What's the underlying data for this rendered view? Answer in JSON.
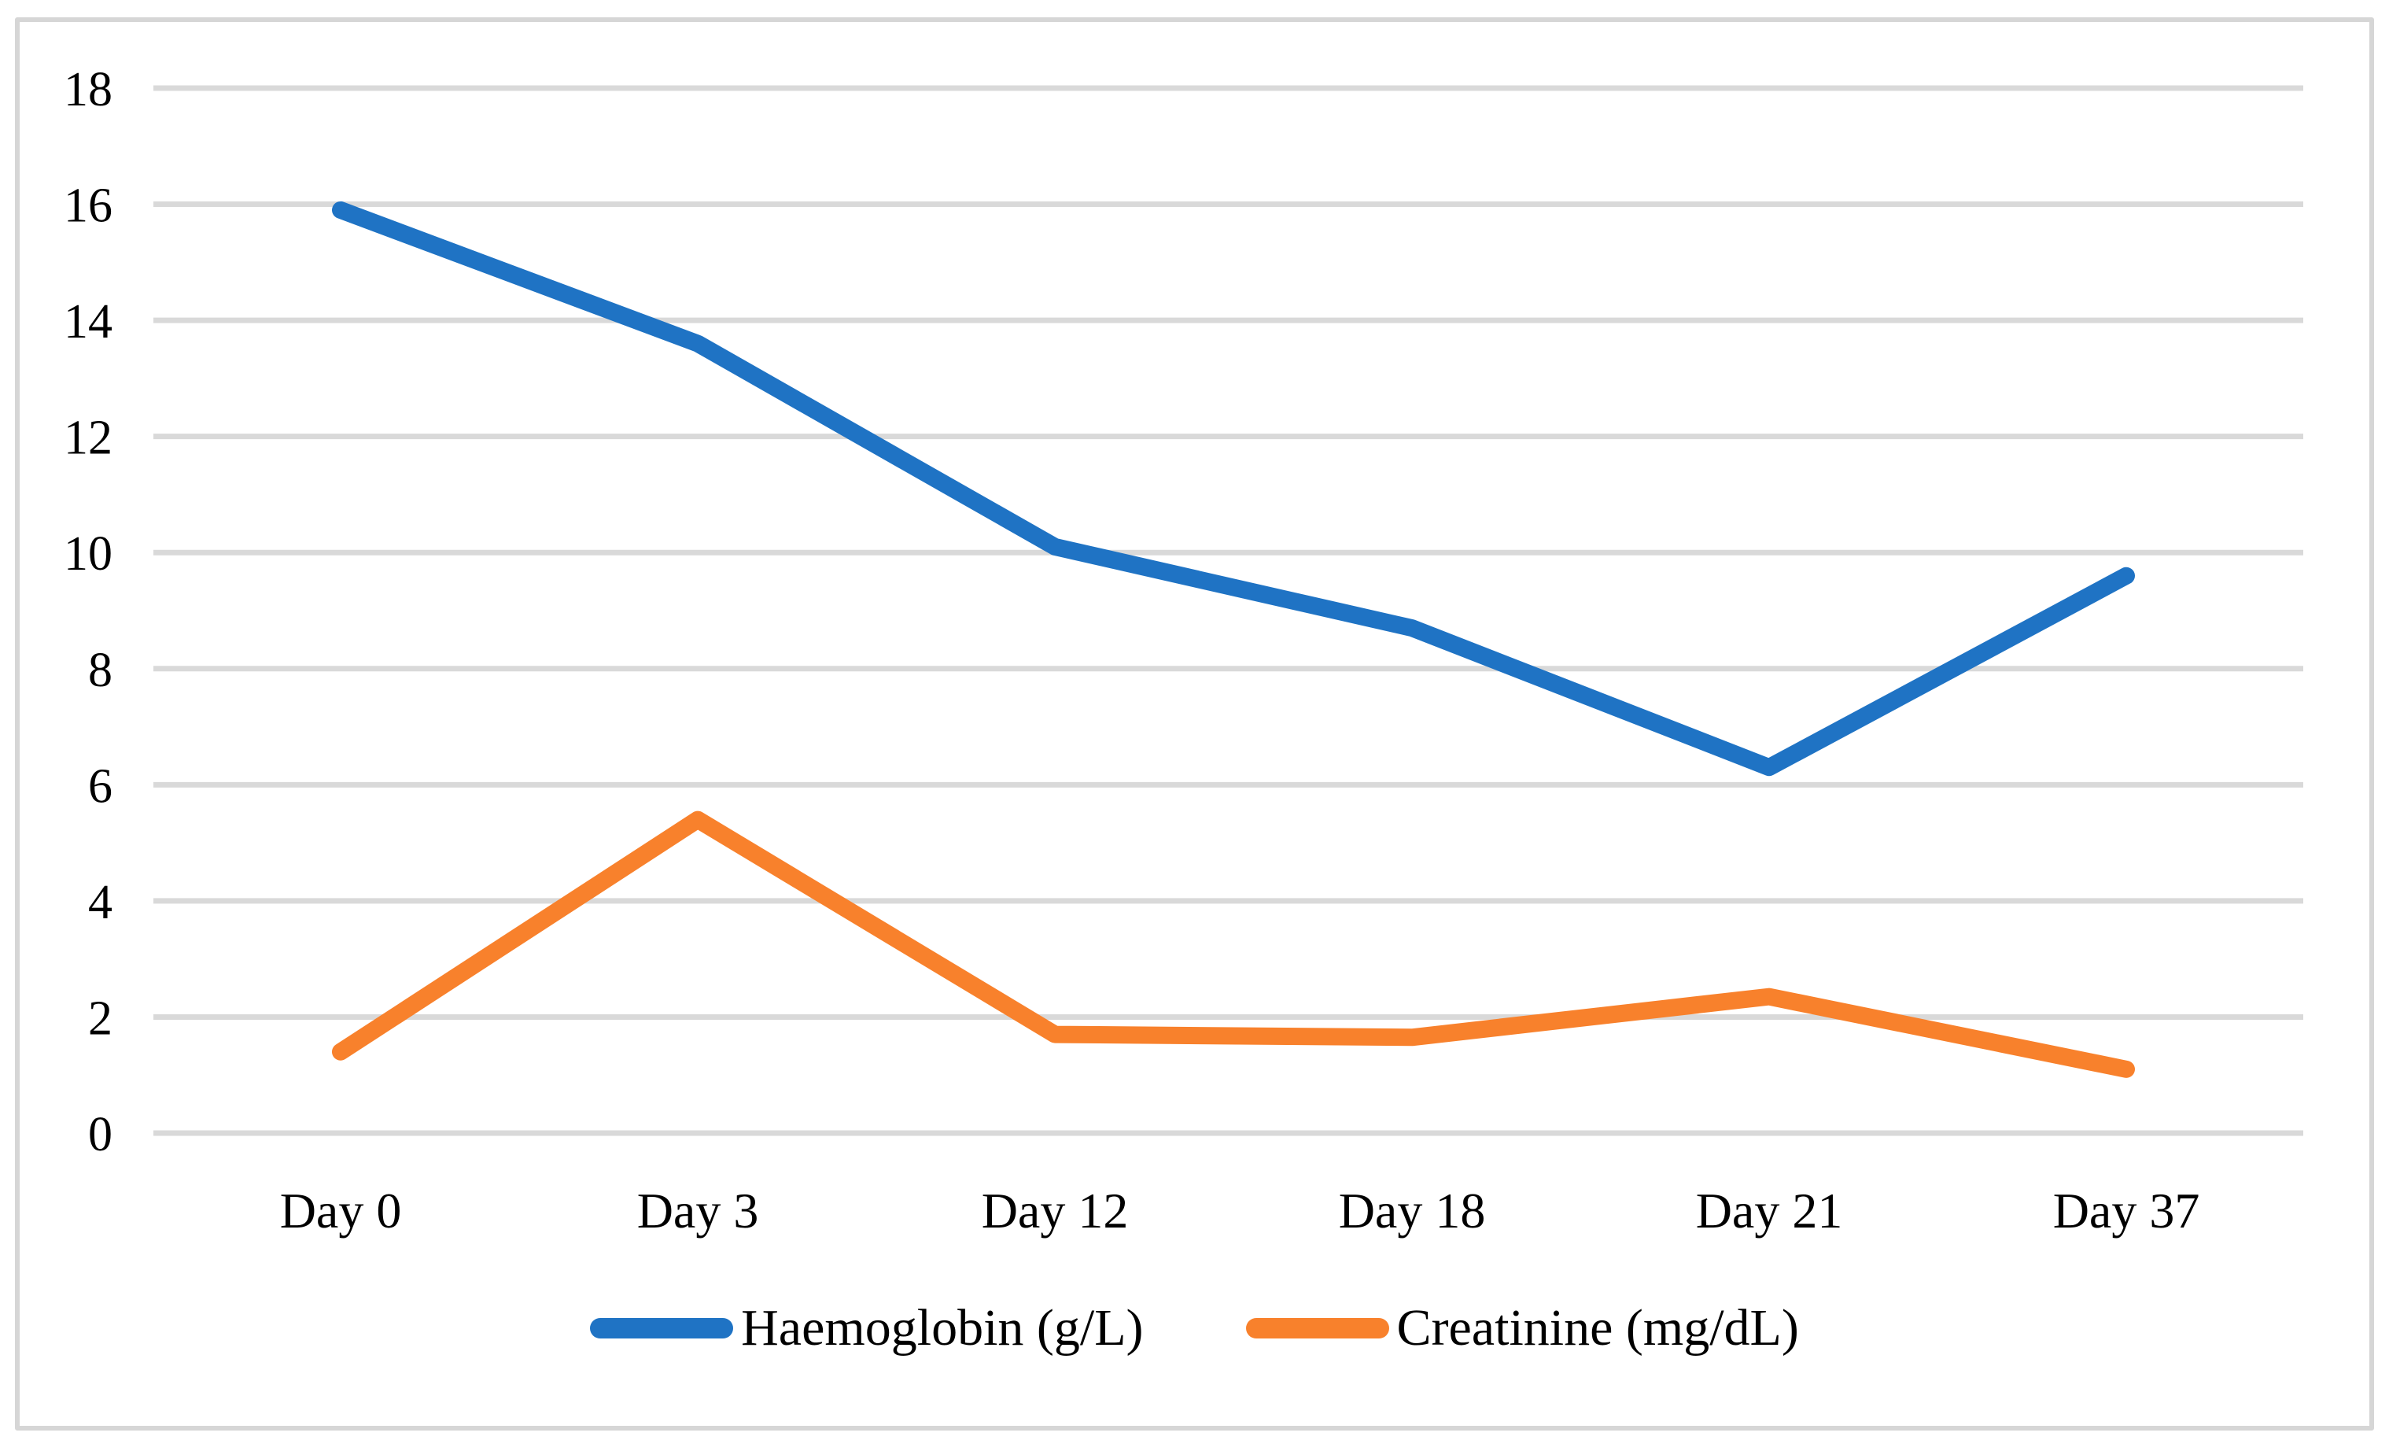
{
  "chart_data": {
    "type": "line",
    "categories": [
      "Day 0",
      "Day 3",
      "Day 12",
      "Day 18",
      "Day 21",
      "Day 37"
    ],
    "series": [
      {
        "name": "Haemoglobin (g/L)",
        "color": "#1f73c4",
        "values": [
          15.9,
          13.6,
          10.1,
          8.7,
          6.3,
          9.6
        ]
      },
      {
        "name": "Creatinine (mg/dL)",
        "color": "#f8812c",
        "values": [
          1.4,
          5.4,
          1.7,
          1.65,
          2.35,
          1.1
        ]
      }
    ],
    "title": "",
    "xlabel": "",
    "ylabel": "",
    "ylim": [
      0,
      18
    ],
    "ytick_step": 2,
    "yticks": [
      "0",
      "2",
      "4",
      "6",
      "8",
      "10",
      "12",
      "14",
      "16",
      "18"
    ],
    "grid": true,
    "legend_position": "bottom-center"
  },
  "style": {
    "gridline_color": "#d9d9d9",
    "frame_color": "#d6d6d6",
    "text_color": "#000000",
    "background_color": "#ffffff"
  }
}
